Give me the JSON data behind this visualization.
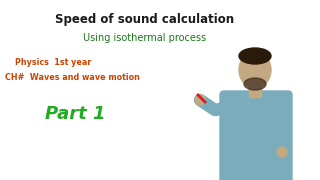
{
  "bg_color": "#ffffff",
  "title_text": "Speed of sound calculation",
  "title_color": "#1a1a1a",
  "title_fontsize": 8.5,
  "title_bold": true,
  "subtitle_text": "Using isothermal process",
  "subtitle_color": "#1a7a1a",
  "subtitle_fontsize": 7.0,
  "line1_text": "Physics  1st year",
  "line2_text": "CH#  Waves and wave motion",
  "lines_color": "#cc4400",
  "lines_fontsize": 5.8,
  "part_text": "Part 1",
  "part_color": "#22aa22",
  "part_fontsize": 13,
  "part_italic": true,
  "part_bold": true,
  "person_skin": "#c4a882",
  "person_shirt": "#7aadbb",
  "person_beard": "#3a2a1a"
}
